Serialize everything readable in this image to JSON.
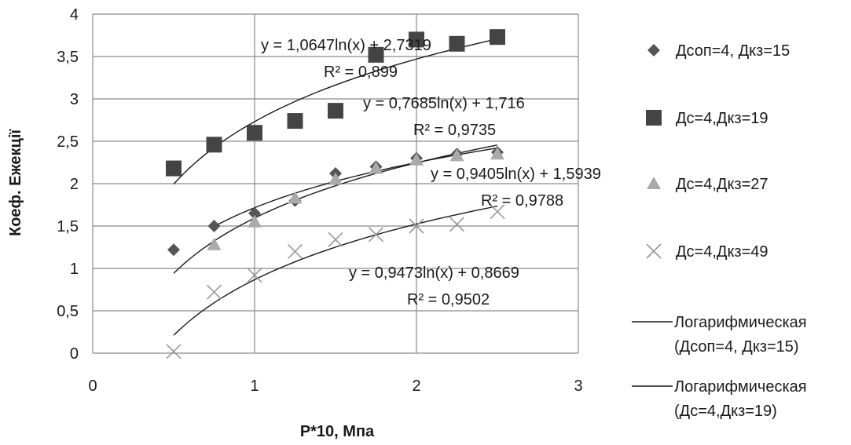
{
  "chart_data": {
    "type": "scatter",
    "xlabel": "P*10,  Мпа",
    "ylabel": "Коеф. Ежекції",
    "xlim": [
      0,
      3
    ],
    "ylim": [
      0,
      4
    ],
    "x_ticks": [
      "0",
      "1",
      "2",
      "3"
    ],
    "y_ticks": [
      "0",
      "0,5",
      "1",
      "1,5",
      "2",
      "2,5",
      "3",
      "3,5",
      "4"
    ],
    "grid": "vertical and horizontal major gridlines",
    "legend_position": "right",
    "series": [
      {
        "name": "Дсоп=4, Дкз=15",
        "marker": "diamond",
        "color": "#555555",
        "x": [
          0.5,
          0.75,
          1.0,
          1.25,
          1.5,
          1.75,
          2.0,
          2.25,
          2.5
        ],
        "y": [
          1.22,
          1.5,
          1.65,
          1.8,
          2.12,
          2.2,
          2.3,
          2.35,
          2.37
        ]
      },
      {
        "name": "Дс=4,Дкз=19",
        "marker": "square",
        "color": "#444444",
        "x": [
          0.5,
          0.75,
          1.0,
          1.25,
          1.5,
          1.75,
          2.0,
          2.25,
          2.5
        ],
        "y": [
          2.18,
          2.46,
          2.6,
          2.74,
          2.86,
          3.52,
          3.7,
          3.65,
          3.73
        ]
      },
      {
        "name": "Дс=4,Дкз=27",
        "marker": "triangle",
        "color": "#aaaaaa",
        "x": [
          0.75,
          1.0,
          1.25,
          1.5,
          1.75,
          2.0,
          2.25,
          2.5
        ],
        "y": [
          1.28,
          1.55,
          1.83,
          2.05,
          2.18,
          2.28,
          2.33,
          2.35
        ]
      },
      {
        "name": "Дс=4,Дкз=49",
        "marker": "cross",
        "color": "#999999",
        "x": [
          0.5,
          0.75,
          1.0,
          1.25,
          1.5,
          1.75,
          2.0,
          2.25,
          2.5
        ],
        "y": [
          0.02,
          0.72,
          0.92,
          1.2,
          1.34,
          1.4,
          1.5,
          1.52,
          1.67
        ]
      }
    ],
    "trendlines": [
      {
        "name": "Логарифмическая (Дсоп=4,  Дкз=15)",
        "a": 0.9405,
        "b": 1.5939,
        "x_range": [
          0.5,
          2.5
        ],
        "equation": "y = 0,9405ln(x) + 1,5939",
        "r2": "R² = 0,9788"
      },
      {
        "name": "Логарифмическая (Дс=4,Дкз=19)",
        "a": 1.0647,
        "b": 2.7319,
        "x_range": [
          0.5,
          2.5
        ],
        "equation": "y = 1,0647ln(x) + 2,7319",
        "r2": "R² = 0,899"
      },
      {
        "name": "",
        "a": 0.7685,
        "b": 1.716,
        "x_range": [
          0.75,
          2.5
        ],
        "equation": "y = 0,7685ln(x) + 1,716",
        "r2": "R² = 0,9735"
      },
      {
        "name": "",
        "a": 0.9473,
        "b": 0.8669,
        "x_range": [
          0.5,
          2.5
        ],
        "equation": "y = 0,9473ln(x) + 0,8669",
        "r2": "R² = 0,9502"
      }
    ]
  }
}
